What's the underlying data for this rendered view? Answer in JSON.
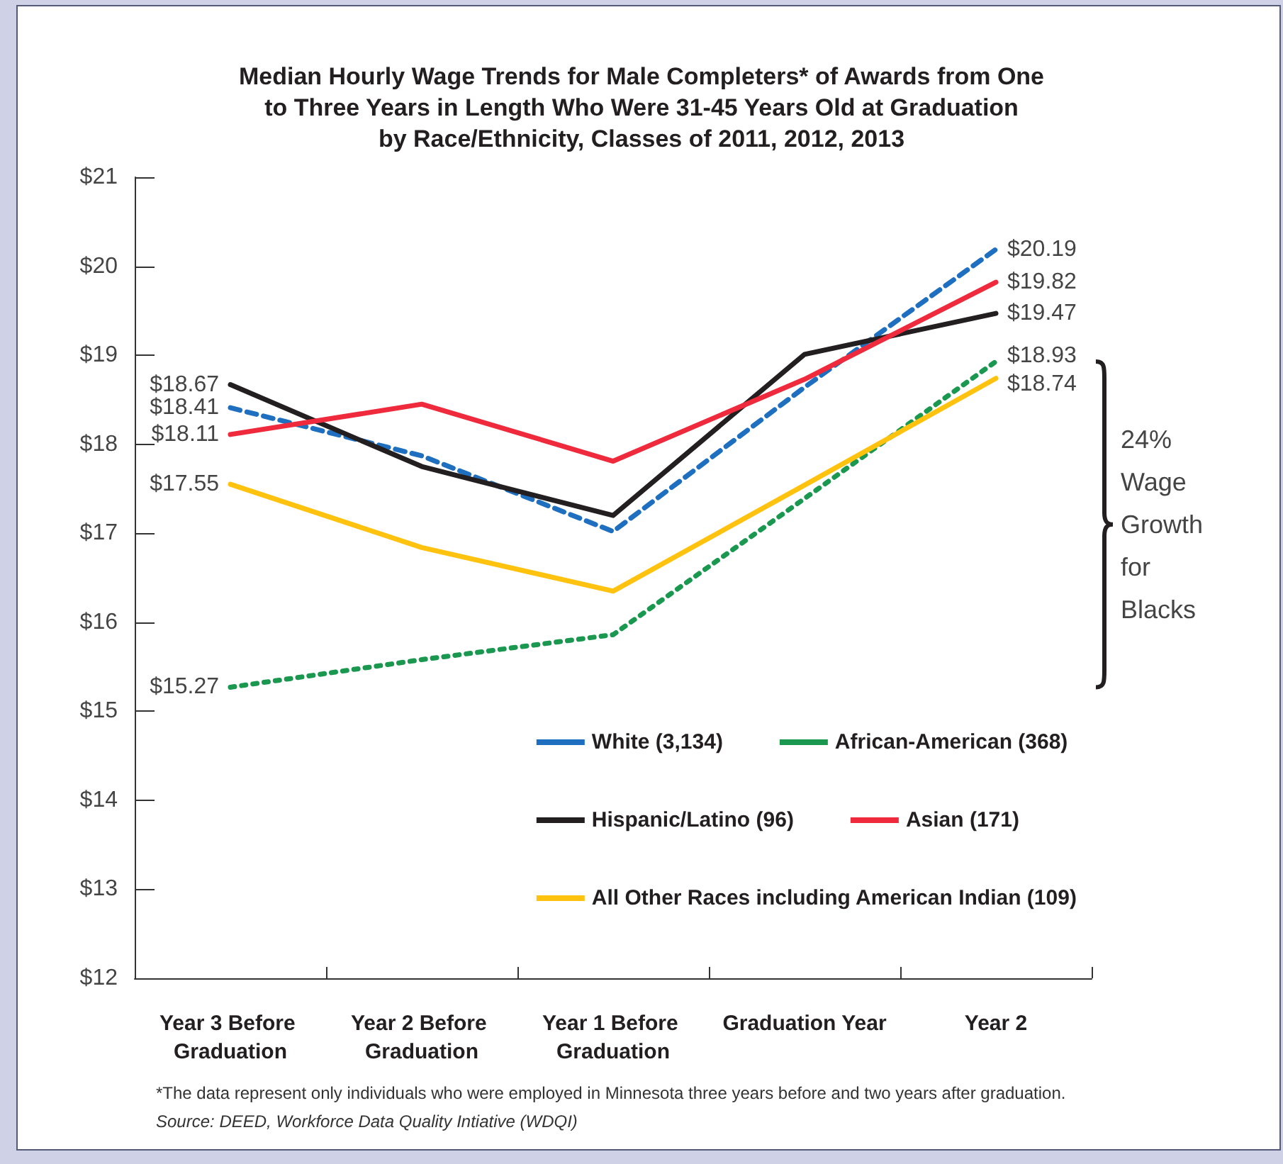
{
  "chart_data": {
    "type": "line",
    "title": "Median Hourly Wage Trends for Male Completers* of Awards from One to Three Years in Length Who Were 31-45 Years Old at Graduation by Race/Ethnicity, Classes of 2011, 2012, 2013",
    "categories": [
      "Year 3 Before Graduation",
      "Year 2 Before Graduation",
      "Year 1 Before Graduation",
      "Graduation Year",
      "Year 2"
    ],
    "series": [
      {
        "name": "White (3,134)",
        "color": "#1f6fc0",
        "line_style": "dashed",
        "values": [
          18.41,
          17.87,
          17.02,
          18.64,
          20.19
        ],
        "value_labels": [
          "$18.41",
          null,
          null,
          null,
          "$20.19"
        ]
      },
      {
        "name": "African-American (368)",
        "color": "#1a9850",
        "line_style": "dotted",
        "values": [
          15.27,
          15.58,
          15.86,
          17.39,
          18.93
        ],
        "value_labels": [
          "$15.27",
          null,
          null,
          null,
          "$18.93"
        ]
      },
      {
        "name": "Hispanic/Latino (96)",
        "color": "#231f20",
        "line_style": "solid",
        "values": [
          18.67,
          17.75,
          17.2,
          19.01,
          19.47
        ],
        "value_labels": [
          "$18.67",
          null,
          null,
          null,
          "$19.47"
        ]
      },
      {
        "name": "Asian (171)",
        "color": "#ee2a3c",
        "line_style": "solid",
        "values": [
          18.11,
          18.45,
          17.81,
          18.73,
          19.82
        ],
        "value_labels": [
          "$18.11",
          null,
          null,
          null,
          "$19.82"
        ]
      },
      {
        "name": "All Other Races including American Indian (109)",
        "color": "#ffc20e",
        "line_style": "solid",
        "values": [
          17.55,
          16.84,
          16.35,
          17.54,
          18.74
        ],
        "value_labels": [
          "$17.55",
          null,
          null,
          null,
          "$18.74"
        ]
      }
    ],
    "ylim": [
      12,
      21
    ],
    "yticks": [
      {
        "value": 12,
        "label": "$12"
      },
      {
        "value": 13,
        "label": "$13"
      },
      {
        "value": 14,
        "label": "$14"
      },
      {
        "value": 15,
        "label": "$15"
      },
      {
        "value": 16,
        "label": "$16"
      },
      {
        "value": 17,
        "label": "$17"
      },
      {
        "value": 18,
        "label": "$18"
      },
      {
        "value": 19,
        "label": "$19"
      },
      {
        "value": 20,
        "label": "$20"
      },
      {
        "value": 21,
        "label": "$21"
      }
    ],
    "grid": false,
    "legend": "bottom right",
    "marker": "none",
    "annotations": [
      "24% Wage Growth for Blacks",
      "*The data represent only individuals who were employed in Minnesota three years before and two years after graduation.",
      "Source: DEED, Workforce Data Quality Intiative (WDQI)"
    ]
  }
}
